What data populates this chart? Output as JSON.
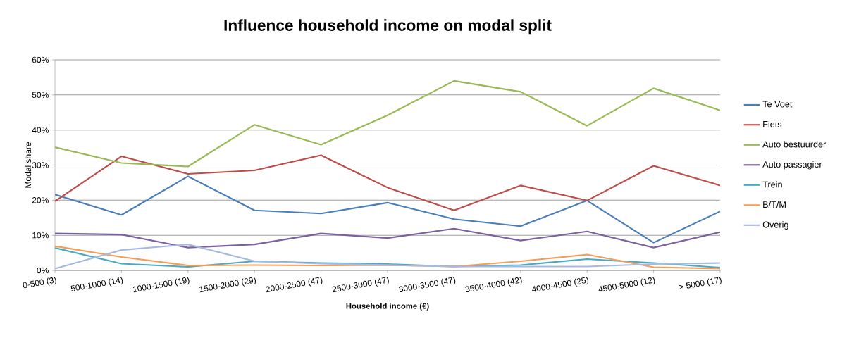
{
  "chart_data": {
    "type": "line",
    "title": "Influence household income on modal split",
    "xlabel": "Household income (€)",
    "ylabel": "Modal share",
    "categories": [
      "0-500 (3)",
      "500-1000 (14)",
      "1000-1500 (19)",
      "1500-2000 (29)",
      "2000-2500 (47)",
      "2500-3000 (47)",
      "3000-3500 (47)",
      "3500-4000 (42)",
      "4000-4500 (25)",
      "4500-5000 (12)",
      "> 5000 (17)"
    ],
    "series": [
      {
        "name": "Te Voet",
        "color": "#4a7ebb",
        "values": [
          21.6,
          15.8,
          26.8,
          17.1,
          16.2,
          19.3,
          14.6,
          12.6,
          19.9,
          7.9,
          16.8
        ]
      },
      {
        "name": "Fiets",
        "color": "#be4b48",
        "values": [
          19.7,
          32.5,
          27.5,
          28.5,
          32.8,
          23.6,
          17.1,
          24.2,
          19.9,
          29.8,
          24.2
        ]
      },
      {
        "name": "Auto bestuurder",
        "color": "#98b954",
        "values": [
          35.1,
          30.6,
          29.6,
          41.5,
          35.8,
          44.2,
          54.0,
          50.9,
          41.2,
          51.9,
          45.6
        ]
      },
      {
        "name": "Auto passagier",
        "color": "#7d60a0",
        "values": [
          10.5,
          10.2,
          6.5,
          7.4,
          10.5,
          9.2,
          11.9,
          8.5,
          11.1,
          6.5,
          10.9
        ]
      },
      {
        "name": "Trein",
        "color": "#46aac5",
        "values": [
          6.4,
          1.9,
          1.0,
          2.6,
          2.1,
          1.8,
          1.1,
          1.5,
          3.2,
          2.1,
          0.8
        ]
      },
      {
        "name": "B/T/M",
        "color": "#f59d56",
        "values": [
          6.9,
          3.8,
          1.4,
          1.5,
          1.4,
          1.5,
          1.1,
          2.6,
          4.5,
          0.9,
          0.5
        ]
      },
      {
        "name": "Overig",
        "color": "#a7b9e3",
        "values": [
          0.5,
          5.8,
          7.4,
          2.6,
          1.9,
          1.5,
          1.1,
          1.1,
          1.1,
          1.8,
          2.1
        ]
      }
    ],
    "ylim": [
      0,
      60
    ],
    "yticks": [
      {
        "value": 0,
        "label": "0%"
      },
      {
        "value": 10,
        "label": "10%"
      },
      {
        "value": 20,
        "label": "20%"
      },
      {
        "value": 30,
        "label": "30%"
      },
      {
        "value": 40,
        "label": "40%"
      },
      {
        "value": 50,
        "label": "50%"
      },
      {
        "value": 60,
        "label": "60%"
      }
    ],
    "grid": "y",
    "legend": "right"
  }
}
